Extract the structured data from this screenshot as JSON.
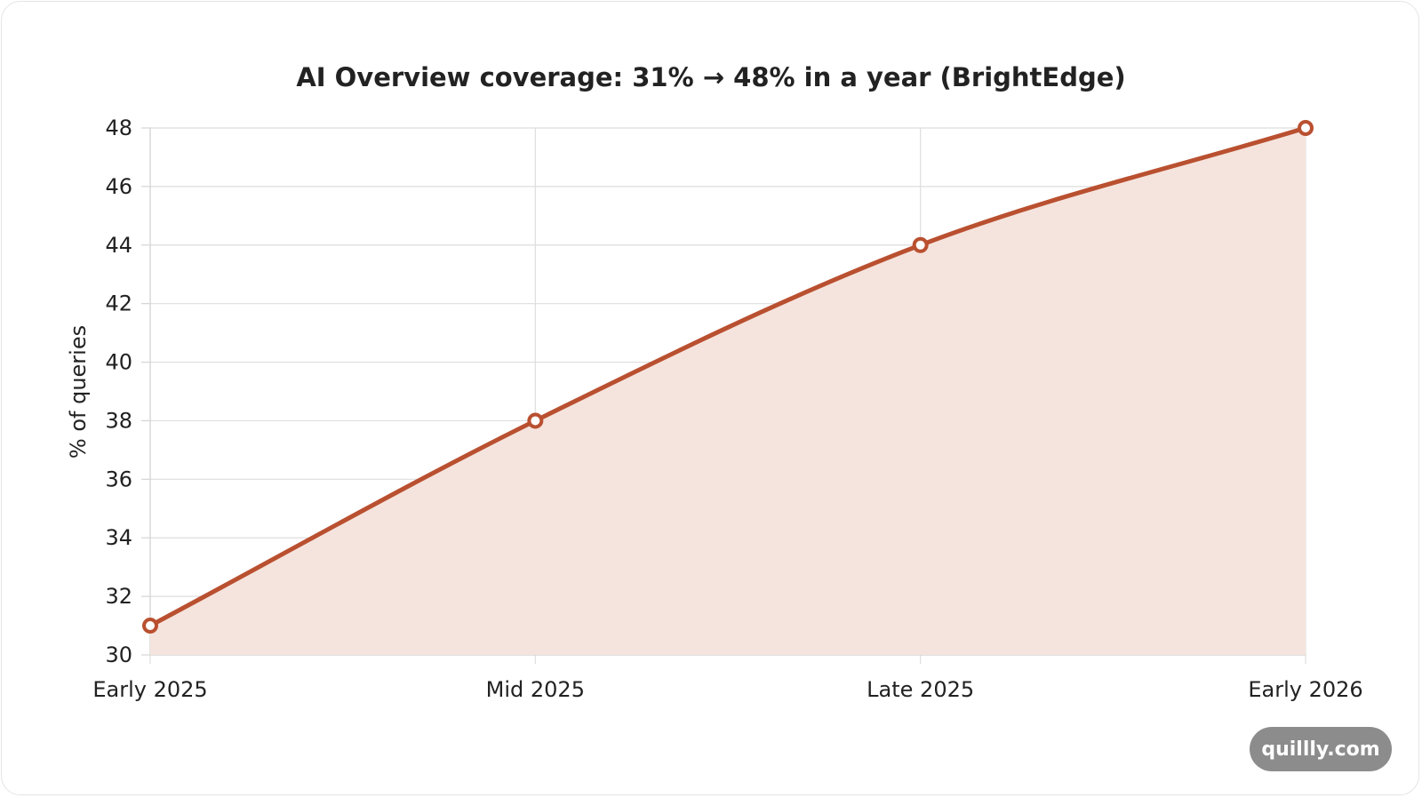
{
  "watermark": "quillly.com",
  "colors": {
    "line": "#b95030",
    "fill": "#f5e4dd",
    "grid": "#dedede",
    "badge": "#8c8c8c"
  },
  "chart_data": {
    "type": "area",
    "title": "AI Overview coverage: 31% → 48% in a year (BrightEdge)",
    "xlabel": "",
    "ylabel": "% of queries",
    "categories": [
      "Early 2025",
      "Mid 2025",
      "Late 2025",
      "Early 2026"
    ],
    "series": [
      {
        "values": [
          31,
          38,
          44,
          48
        ]
      }
    ],
    "ylim": [
      30,
      48
    ],
    "yticks": [
      "30",
      "32",
      "34",
      "36",
      "38",
      "40",
      "42",
      "44",
      "46",
      "48"
    ],
    "grid": true,
    "legend": "none"
  }
}
